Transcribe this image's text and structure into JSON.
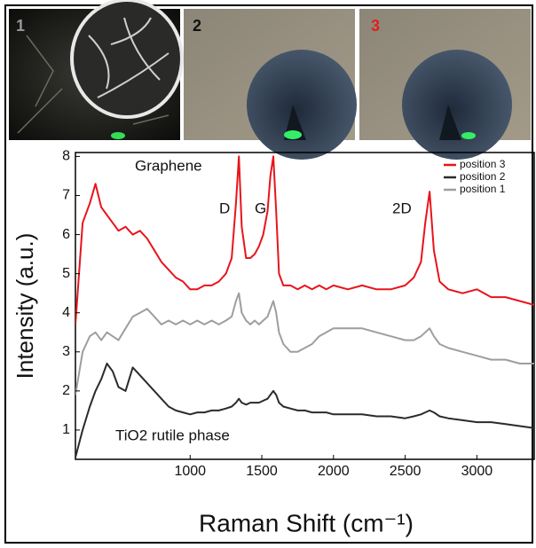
{
  "panels": [
    {
      "label": "1"
    },
    {
      "label": "2"
    },
    {
      "label": "3"
    }
  ],
  "chart_data": {
    "type": "line",
    "x_label": "Raman Shift (cm⁻¹)",
    "y_label": "Intensity (a.u.)",
    "annotations": [
      "Graphene",
      "D",
      "G",
      "2D",
      "TiO2 rutile phase"
    ],
    "x": [
      200,
      250,
      300,
      340,
      380,
      420,
      460,
      500,
      550,
      600,
      650,
      700,
      750,
      800,
      850,
      900,
      950,
      1000,
      1050,
      1100,
      1150,
      1200,
      1250,
      1290,
      1320,
      1340,
      1360,
      1390,
      1420,
      1450,
      1480,
      1510,
      1540,
      1560,
      1580,
      1600,
      1620,
      1650,
      1700,
      1750,
      1800,
      1850,
      1900,
      1950,
      2000,
      2100,
      2200,
      2300,
      2400,
      2500,
      2560,
      2610,
      2640,
      2670,
      2700,
      2740,
      2800,
      2900,
      3000,
      3100,
      3200,
      3300,
      3400
    ],
    "series": [
      {
        "name": "position 3",
        "color": "#e8141b",
        "values": [
          3.7,
          6.3,
          6.8,
          7.3,
          6.7,
          6.5,
          6.3,
          6.1,
          6.2,
          6.0,
          6.1,
          5.9,
          5.6,
          5.3,
          5.1,
          4.9,
          4.8,
          4.6,
          4.6,
          4.7,
          4.7,
          4.8,
          5.0,
          5.4,
          6.8,
          8.0,
          6.2,
          5.4,
          5.4,
          5.5,
          5.7,
          6.0,
          6.6,
          7.5,
          8.0,
          6.6,
          5.0,
          4.7,
          4.7,
          4.6,
          4.7,
          4.6,
          4.7,
          4.6,
          4.7,
          4.6,
          4.7,
          4.6,
          4.6,
          4.7,
          4.9,
          5.3,
          6.3,
          7.1,
          5.6,
          4.8,
          4.6,
          4.5,
          4.6,
          4.4,
          4.4,
          4.3,
          4.2
        ]
      },
      {
        "name": "position 2",
        "color": "#2b2b2b",
        "values": [
          0.3,
          1.0,
          1.6,
          2.0,
          2.3,
          2.7,
          2.5,
          2.1,
          2.0,
          2.6,
          2.4,
          2.2,
          2.0,
          1.8,
          1.6,
          1.5,
          1.45,
          1.4,
          1.45,
          1.45,
          1.5,
          1.5,
          1.55,
          1.6,
          1.7,
          1.8,
          1.7,
          1.65,
          1.7,
          1.7,
          1.7,
          1.75,
          1.8,
          1.9,
          2.0,
          1.9,
          1.7,
          1.6,
          1.55,
          1.5,
          1.5,
          1.45,
          1.45,
          1.45,
          1.4,
          1.4,
          1.4,
          1.35,
          1.35,
          1.3,
          1.35,
          1.4,
          1.45,
          1.5,
          1.45,
          1.35,
          1.3,
          1.25,
          1.2,
          1.2,
          1.15,
          1.1,
          1.05
        ]
      },
      {
        "name": "position 1",
        "color": "#9e9e9e",
        "values": [
          1.9,
          3.0,
          3.4,
          3.5,
          3.3,
          3.5,
          3.4,
          3.3,
          3.6,
          3.9,
          4.0,
          4.1,
          3.9,
          3.7,
          3.8,
          3.7,
          3.8,
          3.7,
          3.8,
          3.7,
          3.8,
          3.7,
          3.8,
          3.9,
          4.3,
          4.5,
          4.0,
          3.8,
          3.7,
          3.8,
          3.7,
          3.8,
          3.9,
          4.1,
          4.3,
          4.0,
          3.5,
          3.2,
          3.0,
          3.0,
          3.1,
          3.2,
          3.4,
          3.5,
          3.6,
          3.6,
          3.6,
          3.5,
          3.4,
          3.3,
          3.3,
          3.4,
          3.5,
          3.6,
          3.4,
          3.2,
          3.1,
          3.0,
          2.9,
          2.8,
          2.8,
          2.7,
          2.7
        ]
      }
    ],
    "xlim": [
      200,
      3400
    ],
    "ylim": [
      0.25,
      8.1
    ],
    "xticks": [
      1000,
      1500,
      2000,
      2500,
      3000
    ],
    "yticks": [
      1,
      2,
      3,
      4,
      5,
      6,
      7,
      8
    ],
    "legend": "upper right",
    "grid": false
  }
}
